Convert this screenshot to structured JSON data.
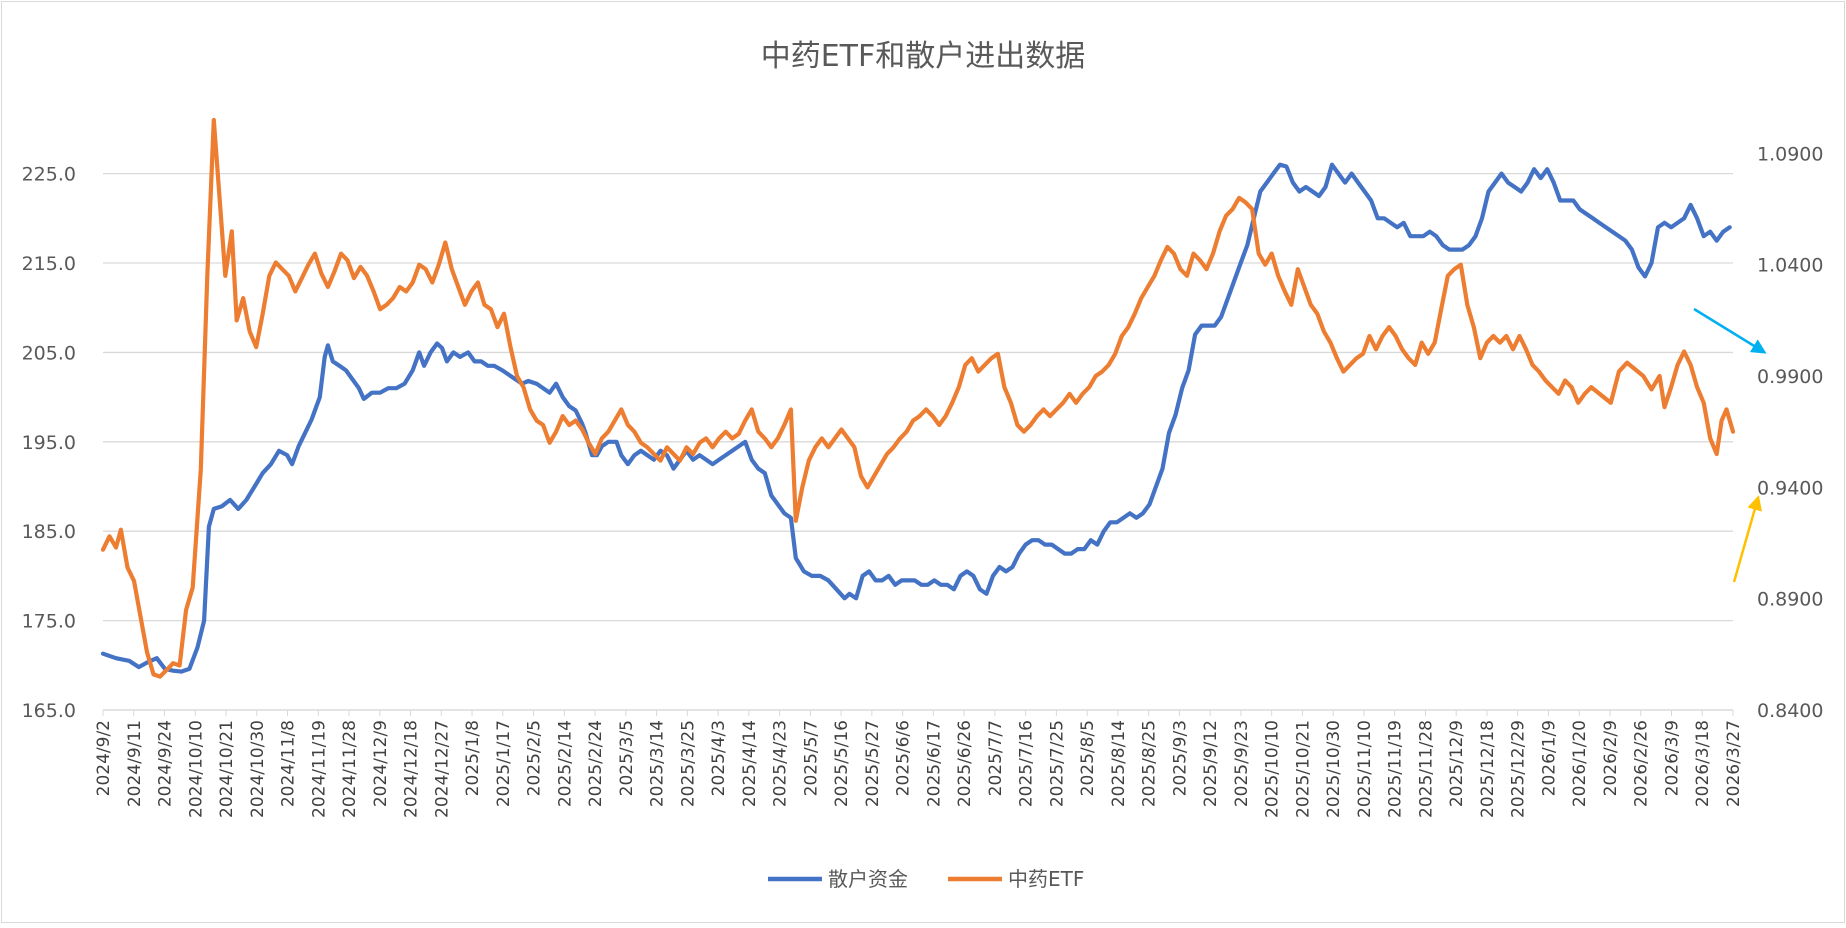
{
  "chart_data": {
    "type": "line",
    "title": "中药ETF和散户进出数据",
    "left_axis": {
      "min": 165.0,
      "max": 231.0,
      "ticks": [
        "225.0",
        "215.0",
        "205.0",
        "195.0",
        "185.0",
        "175.0",
        "165.0"
      ],
      "tick_values": [
        225,
        215,
        205,
        195,
        185,
        175,
        165
      ]
    },
    "right_axis": {
      "min": 0.84,
      "max": 1.105,
      "ticks": [
        "1.0900",
        "1.0400",
        "0.9900",
        "0.9400",
        "0.8900",
        "0.8400"
      ],
      "tick_values": [
        1.09,
        1.04,
        0.99,
        0.94,
        0.89,
        0.84
      ]
    },
    "x_labels": [
      "2024/9/2",
      "2024/9/11",
      "2024/9/24",
      "2024/10/10",
      "2024/10/21",
      "2024/10/30",
      "2024/11/8",
      "2024/11/19",
      "2024/11/28",
      "2024/12/9",
      "2024/12/18",
      "2024/12/27",
      "2025/1/8",
      "2025/1/17",
      "2025/2/5",
      "2025/2/14",
      "2025/2/24",
      "2025/3/5",
      "2025/3/14",
      "2025/3/25",
      "2025/4/3",
      "2025/4/14",
      "2025/4/23",
      "2025/5/7",
      "2025/5/16",
      "2025/5/27",
      "2025/6/6",
      "2025/6/17",
      "2025/6/26",
      "2025/7/7",
      "2025/7/16",
      "2025/7/25",
      "2025/8/5",
      "2025/8/14",
      "2025/8/25",
      "2025/9/3",
      "2025/9/12",
      "2025/9/23",
      "2025/10/10",
      "2025/10/21",
      "2025/10/30",
      "2025/11/10",
      "2025/11/19",
      "2025/11/28",
      "2025/12/9",
      "2025/12/18",
      "2025/12/29",
      "2026/1/9",
      "2026/1/20",
      "2026/2/9",
      "2026/2/26",
      "2026/3/9",
      "2026/3/18",
      "2026/3/27"
    ],
    "grid": true,
    "legend_position": "bottom",
    "series": [
      {
        "name": "散户资金",
        "axis": "left",
        "color": "#4472C4",
        "points": [
          [
            0,
            171.3
          ],
          [
            0.008,
            170.8
          ],
          [
            0.016,
            170.5
          ],
          [
            0.022,
            169.8
          ],
          [
            0.028,
            170.4
          ],
          [
            0.033,
            170.8
          ],
          [
            0.038,
            169.6
          ],
          [
            0.043,
            169.4
          ],
          [
            0.048,
            169.3
          ],
          [
            0.053,
            169.6
          ],
          [
            0.058,
            172
          ],
          [
            0.062,
            175
          ],
          [
            0.065,
            185.5
          ],
          [
            0.068,
            187.5
          ],
          [
            0.073,
            187.8
          ],
          [
            0.078,
            188.5
          ],
          [
            0.083,
            187.5
          ],
          [
            0.088,
            188.5
          ],
          [
            0.093,
            190
          ],
          [
            0.098,
            191.5
          ],
          [
            0.103,
            192.5
          ],
          [
            0.108,
            194
          ],
          [
            0.113,
            193.5
          ],
          [
            0.116,
            192.5
          ],
          [
            0.12,
            194.5
          ],
          [
            0.124,
            196
          ],
          [
            0.128,
            197.5
          ],
          [
            0.133,
            200
          ],
          [
            0.136,
            204.5
          ],
          [
            0.138,
            205.8
          ],
          [
            0.141,
            204
          ],
          [
            0.145,
            203.5
          ],
          [
            0.149,
            203
          ],
          [
            0.153,
            202
          ],
          [
            0.157,
            201
          ],
          [
            0.16,
            199.8
          ],
          [
            0.165,
            200.5
          ],
          [
            0.17,
            200.5
          ],
          [
            0.175,
            201
          ],
          [
            0.18,
            201
          ],
          [
            0.185,
            201.5
          ],
          [
            0.19,
            203
          ],
          [
            0.194,
            205
          ],
          [
            0.197,
            203.5
          ],
          [
            0.201,
            205
          ],
          [
            0.205,
            206
          ],
          [
            0.208,
            205.5
          ],
          [
            0.211,
            204
          ],
          [
            0.215,
            205
          ],
          [
            0.219,
            204.5
          ],
          [
            0.224,
            205
          ],
          [
            0.228,
            204
          ],
          [
            0.232,
            204
          ],
          [
            0.236,
            203.5
          ],
          [
            0.24,
            203.5
          ],
          [
            0.245,
            203
          ],
          [
            0.249,
            202.5
          ],
          [
            0.253,
            202
          ],
          [
            0.257,
            201.5
          ],
          [
            0.261,
            201.8
          ],
          [
            0.266,
            201.5
          ],
          [
            0.27,
            201
          ],
          [
            0.274,
            200.5
          ],
          [
            0.278,
            201.5
          ],
          [
            0.282,
            200
          ],
          [
            0.286,
            199
          ],
          [
            0.29,
            198.5
          ],
          [
            0.294,
            197
          ],
          [
            0.296,
            196
          ],
          [
            0.3,
            193.5
          ],
          [
            0.303,
            193.5
          ],
          [
            0.306,
            194.5
          ],
          [
            0.31,
            195
          ],
          [
            0.315,
            195
          ],
          [
            0.318,
            193.5
          ],
          [
            0.322,
            192.5
          ],
          [
            0.326,
            193.5
          ],
          [
            0.33,
            194
          ],
          [
            0.334,
            193.5
          ],
          [
            0.338,
            193
          ],
          [
            0.342,
            194
          ],
          [
            0.346,
            193.5
          ],
          [
            0.35,
            192
          ],
          [
            0.354,
            193
          ],
          [
            0.358,
            194
          ],
          [
            0.362,
            193
          ],
          [
            0.366,
            193.5
          ],
          [
            0.37,
            193
          ],
          [
            0.374,
            192.5
          ],
          [
            0.378,
            193
          ],
          [
            0.382,
            193.5
          ],
          [
            0.386,
            194
          ],
          [
            0.39,
            194.5
          ],
          [
            0.394,
            195
          ],
          [
            0.398,
            193
          ],
          [
            0.402,
            192
          ],
          [
            0.406,
            191.5
          ],
          [
            0.41,
            189
          ],
          [
            0.414,
            188
          ],
          [
            0.418,
            187
          ],
          [
            0.422,
            186.5
          ],
          [
            0.425,
            182
          ],
          [
            0.43,
            180.5
          ],
          [
            0.435,
            180
          ],
          [
            0.44,
            180
          ],
          [
            0.445,
            179.5
          ],
          [
            0.45,
            178.5
          ],
          [
            0.455,
            177.5
          ],
          [
            0.458,
            178
          ],
          [
            0.462,
            177.5
          ],
          [
            0.466,
            180
          ],
          [
            0.47,
            180.5
          ],
          [
            0.474,
            179.5
          ],
          [
            0.478,
            179.5
          ],
          [
            0.482,
            180
          ],
          [
            0.486,
            179
          ],
          [
            0.49,
            179.5
          ],
          [
            0.494,
            179.5
          ],
          [
            0.498,
            179.5
          ],
          [
            0.502,
            179
          ],
          [
            0.506,
            179
          ],
          [
            0.51,
            179.5
          ],
          [
            0.514,
            179
          ],
          [
            0.518,
            179
          ],
          [
            0.522,
            178.5
          ],
          [
            0.526,
            180
          ],
          [
            0.53,
            180.5
          ],
          [
            0.534,
            180
          ],
          [
            0.538,
            178.5
          ],
          [
            0.542,
            178
          ],
          [
            0.546,
            180
          ],
          [
            0.55,
            181
          ],
          [
            0.554,
            180.5
          ],
          [
            0.558,
            181
          ],
          [
            0.562,
            182.5
          ],
          [
            0.566,
            183.5
          ],
          [
            0.57,
            184
          ],
          [
            0.574,
            184
          ],
          [
            0.578,
            183.5
          ],
          [
            0.582,
            183.5
          ],
          [
            0.586,
            183
          ],
          [
            0.59,
            182.5
          ],
          [
            0.594,
            182.5
          ],
          [
            0.598,
            183
          ],
          [
            0.602,
            183
          ],
          [
            0.606,
            184
          ],
          [
            0.61,
            183.5
          ],
          [
            0.614,
            185
          ],
          [
            0.618,
            186
          ],
          [
            0.622,
            186
          ],
          [
            0.626,
            186.5
          ],
          [
            0.63,
            187
          ],
          [
            0.634,
            186.5
          ],
          [
            0.638,
            187
          ],
          [
            0.642,
            188
          ],
          [
            0.646,
            190
          ],
          [
            0.65,
            192
          ],
          [
            0.654,
            196
          ],
          [
            0.658,
            198
          ],
          [
            0.662,
            201
          ],
          [
            0.666,
            203
          ],
          [
            0.67,
            207
          ],
          [
            0.674,
            208
          ],
          [
            0.678,
            208
          ],
          [
            0.682,
            208
          ],
          [
            0.686,
            209
          ],
          [
            0.69,
            211
          ],
          [
            0.694,
            213
          ],
          [
            0.698,
            215
          ],
          [
            0.702,
            217
          ],
          [
            0.706,
            220
          ],
          [
            0.71,
            223
          ],
          [
            0.714,
            224
          ],
          [
            0.718,
            225
          ],
          [
            0.722,
            226
          ],
          [
            0.726,
            225.8
          ],
          [
            0.73,
            224
          ],
          [
            0.734,
            223
          ],
          [
            0.738,
            223.5
          ],
          [
            0.742,
            223
          ],
          [
            0.746,
            222.5
          ],
          [
            0.75,
            223.5
          ],
          [
            0.754,
            226
          ],
          [
            0.758,
            225
          ],
          [
            0.762,
            224
          ],
          [
            0.766,
            225
          ],
          [
            0.77,
            224
          ],
          [
            0.774,
            223
          ],
          [
            0.778,
            222
          ],
          [
            0.782,
            220
          ],
          [
            0.786,
            220
          ],
          [
            0.79,
            219.5
          ],
          [
            0.794,
            219
          ],
          [
            0.798,
            219.5
          ],
          [
            0.802,
            218
          ],
          [
            0.806,
            218
          ],
          [
            0.81,
            218
          ],
          [
            0.814,
            218.5
          ],
          [
            0.818,
            218
          ],
          [
            0.822,
            217
          ],
          [
            0.826,
            216.5
          ],
          [
            0.83,
            216.5
          ],
          [
            0.834,
            216.5
          ],
          [
            0.838,
            217
          ],
          [
            0.842,
            218
          ],
          [
            0.846,
            220
          ],
          [
            0.85,
            223
          ],
          [
            0.854,
            224
          ],
          [
            0.858,
            225
          ],
          [
            0.862,
            224
          ],
          [
            0.866,
            223.5
          ],
          [
            0.87,
            223
          ],
          [
            0.874,
            224
          ],
          [
            0.878,
            225.5
          ],
          [
            0.882,
            224.5
          ],
          [
            0.886,
            225.5
          ],
          [
            0.89,
            224
          ],
          [
            0.894,
            222
          ],
          [
            0.898,
            222
          ],
          [
            0.902,
            222
          ],
          [
            0.906,
            221
          ],
          [
            0.91,
            220.5
          ],
          [
            0.914,
            220
          ],
          [
            0.918,
            219.5
          ],
          [
            0.922,
            219
          ],
          [
            0.926,
            218.5
          ],
          [
            0.93,
            218
          ],
          [
            0.934,
            217.5
          ],
          [
            0.938,
            216.5
          ],
          [
            0.942,
            214.5
          ],
          [
            0.946,
            213.5
          ],
          [
            0.95,
            215
          ],
          [
            0.954,
            219
          ],
          [
            0.958,
            219.5
          ],
          [
            0.962,
            219
          ],
          [
            0.966,
            219.5
          ],
          [
            0.97,
            220
          ],
          [
            0.974,
            221.5
          ],
          [
            0.978,
            220
          ],
          [
            0.982,
            218
          ],
          [
            0.986,
            218.5
          ],
          [
            0.99,
            217.5
          ],
          [
            0.994,
            218.5
          ],
          [
            0.998,
            219
          ]
        ],
        "_note": "values_mapped_to_full_range"
      }
    ]
  }
}
